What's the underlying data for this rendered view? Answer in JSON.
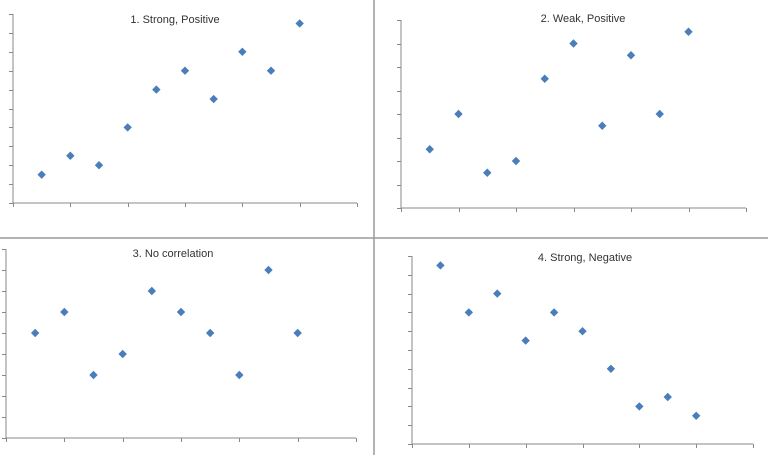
{
  "chart_data": [
    {
      "type": "scatter",
      "title": "1. Strong, Positive",
      "xlabel": "",
      "ylabel": "",
      "xlim": [
        0,
        6
      ],
      "ylim": [
        0,
        10
      ],
      "x_tick_step": 1,
      "y_tick_step": 1,
      "tick_labels": false,
      "grid": false,
      "marker": "diamond",
      "color": "#4a7ebb",
      "x": [
        0.5,
        1,
        1.5,
        2,
        2.5,
        3,
        3.5,
        4,
        4.5,
        5
      ],
      "y": [
        1.5,
        2.5,
        2,
        4,
        6,
        7,
        5.5,
        8,
        7,
        9.5
      ]
    },
    {
      "type": "scatter",
      "title": "2. Weak, Positive",
      "xlabel": "",
      "ylabel": "",
      "xlim": [
        0,
        6
      ],
      "ylim": [
        0,
        8
      ],
      "x_tick_step": 1,
      "y_tick_step": 1,
      "tick_labels": false,
      "grid": false,
      "marker": "diamond",
      "color": "#4a7ebb",
      "x": [
        0.5,
        1,
        1.5,
        2,
        2.5,
        3,
        3.5,
        4,
        4.5,
        5
      ],
      "y": [
        2.5,
        4,
        1.5,
        2,
        5.5,
        7,
        3.5,
        6.5,
        4,
        7.5
      ]
    },
    {
      "type": "scatter",
      "title": "3. No correlation",
      "xlabel": "",
      "ylabel": "",
      "xlim": [
        0,
        6
      ],
      "ylim": [
        0,
        9
      ],
      "x_tick_step": 1,
      "y_tick_step": 1,
      "tick_labels": false,
      "grid": false,
      "marker": "diamond",
      "color": "#4a7ebb",
      "x": [
        0.5,
        1,
        1.5,
        2,
        2.5,
        3,
        3.5,
        4,
        4.5,
        5
      ],
      "y": [
        5,
        6,
        3,
        4,
        7,
        6,
        5,
        3,
        8,
        5
      ]
    },
    {
      "type": "scatter",
      "title": "4. Strong, Negative",
      "xlabel": "",
      "ylabel": "",
      "xlim": [
        0,
        6
      ],
      "ylim": [
        0,
        10
      ],
      "x_tick_step": 1,
      "y_tick_step": 1,
      "tick_labels": false,
      "grid": false,
      "marker": "diamond",
      "color": "#4a7ebb",
      "x": [
        0.5,
        1,
        1.5,
        2,
        2.5,
        3,
        3.5,
        4,
        4.5,
        5
      ],
      "y": [
        9.5,
        7,
        8,
        5.5,
        7,
        6,
        4,
        2,
        2.5,
        1.5
      ]
    }
  ]
}
